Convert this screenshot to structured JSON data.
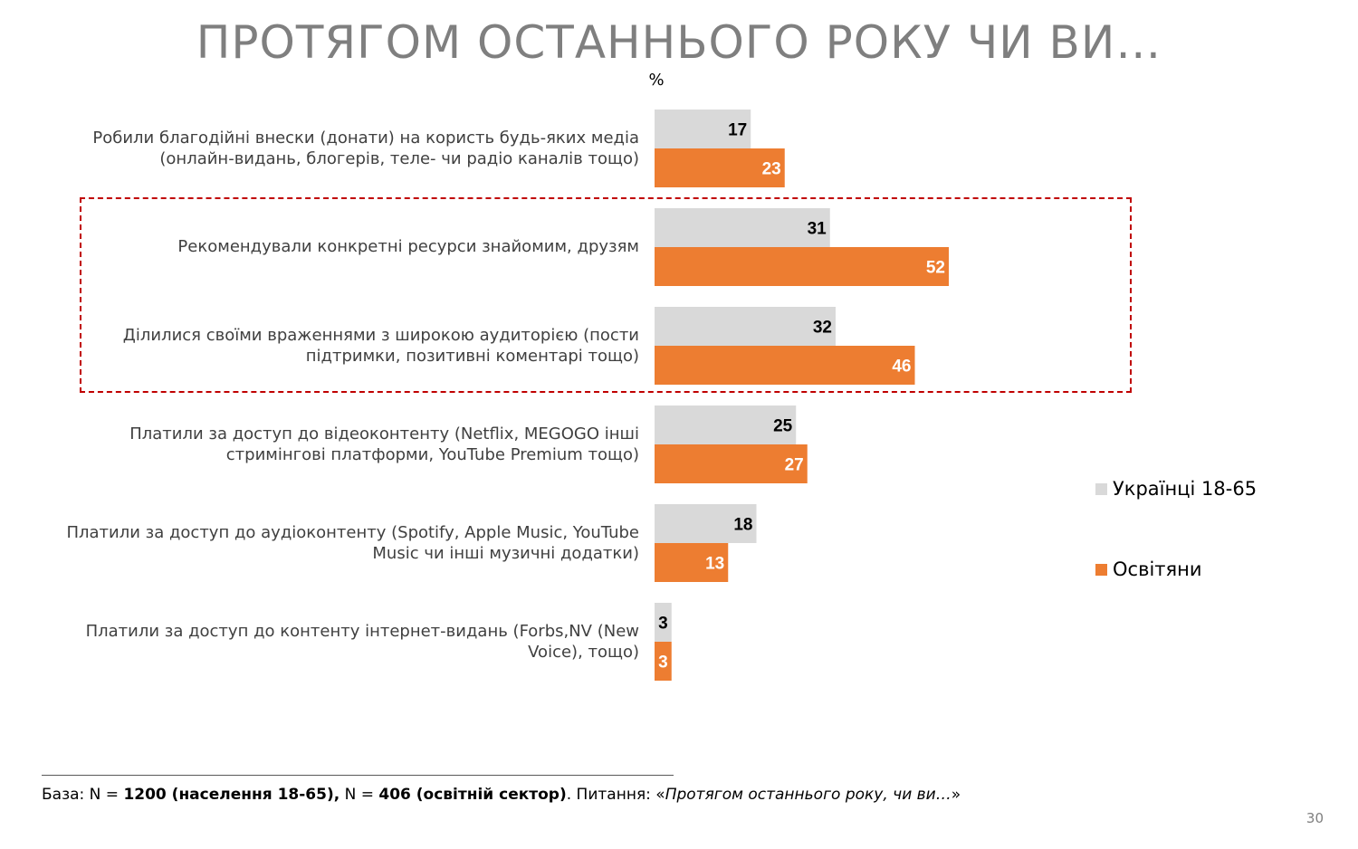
{
  "title": "ПРОТЯГОМ ОСТАННЬОГО РОКУ ЧИ ВИ…",
  "unit_label": "%",
  "chart_data": {
    "type": "bar",
    "orientation": "horizontal",
    "categories": [
      "Робили благодійні внески (донати) на користь будь-яких медіа (онлайн-видань, блогерів, теле- чи радіо каналів тощо)",
      "Рекомендували конкретні ресурси знайомим, друзям",
      "Ділилися своїми враженнями з широкою аудиторією (пости підтримки, позитивні коментарі тощо)",
      "Платили за доступ до відеоконтенту (Netflix, MEGOGO інші стримінгові платформи, YouTube Premium тощо)",
      "Платили за доступ до аудіоконтенту (Spotify, Apple Music, YouTube Music чи інші музичні додатки)",
      "Платили за доступ до контенту інтернет-видань (Forbs,NV (New Voice), тощо)"
    ],
    "series": [
      {
        "name": "Українці 18-65",
        "color": "#d9d9d9",
        "label_color": "#000000",
        "values": [
          17,
          31,
          32,
          25,
          18,
          3
        ]
      },
      {
        "name": "Освітяни",
        "color": "#ed7d31",
        "label_color": "#ffffff",
        "values": [
          23,
          52,
          46,
          27,
          13,
          3
        ]
      }
    ],
    "xlim": [
      0,
      100
    ],
    "grid": false,
    "legend_position": "right",
    "highlighted_categories": [
      1,
      2
    ]
  },
  "category_lines": [
    [
      "Робили благодійні внески (донати) на користь будь-яких медіа",
      "(онлайн-видань, блогерів, теле- чи радіо каналів тощо)"
    ],
    [
      "Рекомендували конкретні ресурси знайомим, друзям"
    ],
    [
      "Ділилися своїми враженнями з широкою аудиторією (пости",
      "підтримки, позитивні коментарі тощо)"
    ],
    [
      "Платили за доступ до відеоконтенту (Netflix, MEGOGO інші",
      "стримінгові платформи, YouTube Premium тощо)"
    ],
    [
      "Платили за доступ до аудіоконтенту (Spotify, Apple Music, YouTube",
      "Music чи інші музичні додатки)"
    ],
    [
      "Платили за доступ до контенту інтернет-видань (Forbs,NV (New",
      "Voice), тощо)"
    ]
  ],
  "footer": {
    "base_prefix": "База: N = ",
    "base_n1": "1200 (населення 18-65),",
    "mid": " N = ",
    "base_n2": "406 (освітній сектор)",
    "question_prefix": ". Питання: «",
    "question": "Протягом останнього року, чи ви…",
    "question_suffix": "»"
  },
  "page_number": "30"
}
